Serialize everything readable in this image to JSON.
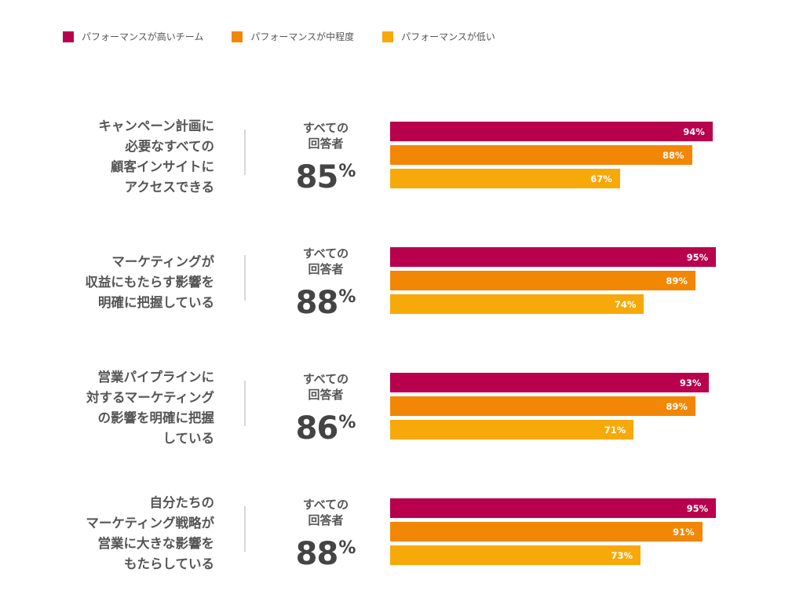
{
  "colors": {
    "high": "#b8004d",
    "mid": "#f28705",
    "low": "#f7a90a"
  },
  "legend": [
    {
      "label": "パフォーマンスが高いチーム",
      "color": "#b8004d"
    },
    {
      "label": "パフォーマンスが中程度",
      "color": "#f28705"
    },
    {
      "label": "パフォーマンスが低い",
      "color": "#f7a90a"
    }
  ],
  "chart_data": {
    "type": "bar",
    "orientation": "horizontal",
    "xlim": [
      0,
      100
    ],
    "series": [
      {
        "name": "パフォーマンスが高いチーム",
        "values": [
          94,
          95,
          93,
          95
        ]
      },
      {
        "name": "パフォーマンスが中程度",
        "values": [
          88,
          89,
          89,
          91
        ]
      },
      {
        "name": "パフォーマンスが低い",
        "values": [
          67,
          74,
          71,
          73
        ]
      }
    ],
    "categories": [
      "キャンペーン計画に必要なすべての顧客インサイトにアクセスできる",
      "マーケティングが収益にもたらす影響を明確に把握している",
      "営業パイプラインに対するマーケティングの影響を明確に把握している",
      "自分たちのマーケティング戦略が営業に大きな影響をもたらしている"
    ],
    "all_respondents": [
      85,
      88,
      86,
      88
    ],
    "legend_position": "top-left"
  },
  "groups": [
    {
      "question_lines": [
        "キャンペーン計画に",
        "必要なすべての",
        "顧客インサイトに",
        "アクセスできる"
      ],
      "overall_label": [
        "すべての",
        "回答者"
      ],
      "overall_value": "85",
      "overall_unit": "%",
      "bars": [
        {
          "value": 94,
          "label": "94%"
        },
        {
          "value": 88,
          "label": "88%"
        },
        {
          "value": 67,
          "label": "67%"
        }
      ]
    },
    {
      "question_lines": [
        "マーケティングが",
        "収益にもたらす影響を",
        "明確に把握している"
      ],
      "overall_label": [
        "すべての",
        "回答者"
      ],
      "overall_value": "88",
      "overall_unit": "%",
      "bars": [
        {
          "value": 95,
          "label": "95%"
        },
        {
          "value": 89,
          "label": "89%"
        },
        {
          "value": 74,
          "label": "74%"
        }
      ]
    },
    {
      "question_lines": [
        "営業パイプラインに",
        "対するマーケティング",
        "の影響を明確に把握",
        "している"
      ],
      "overall_label": [
        "すべての",
        "回答者"
      ],
      "overall_value": "86",
      "overall_unit": "%",
      "bars": [
        {
          "value": 93,
          "label": "93%"
        },
        {
          "value": 89,
          "label": "89%"
        },
        {
          "value": 71,
          "label": "71%"
        }
      ]
    },
    {
      "question_lines": [
        "自分たちの",
        "マーケティング戦略が",
        "営業に大きな影響を",
        "もたらしている"
      ],
      "overall_label": [
        "すべての",
        "回答者"
      ],
      "overall_value": "88",
      "overall_unit": "%",
      "bars": [
        {
          "value": 95,
          "label": "95%"
        },
        {
          "value": 91,
          "label": "91%"
        },
        {
          "value": 73,
          "label": "73%"
        }
      ]
    }
  ]
}
